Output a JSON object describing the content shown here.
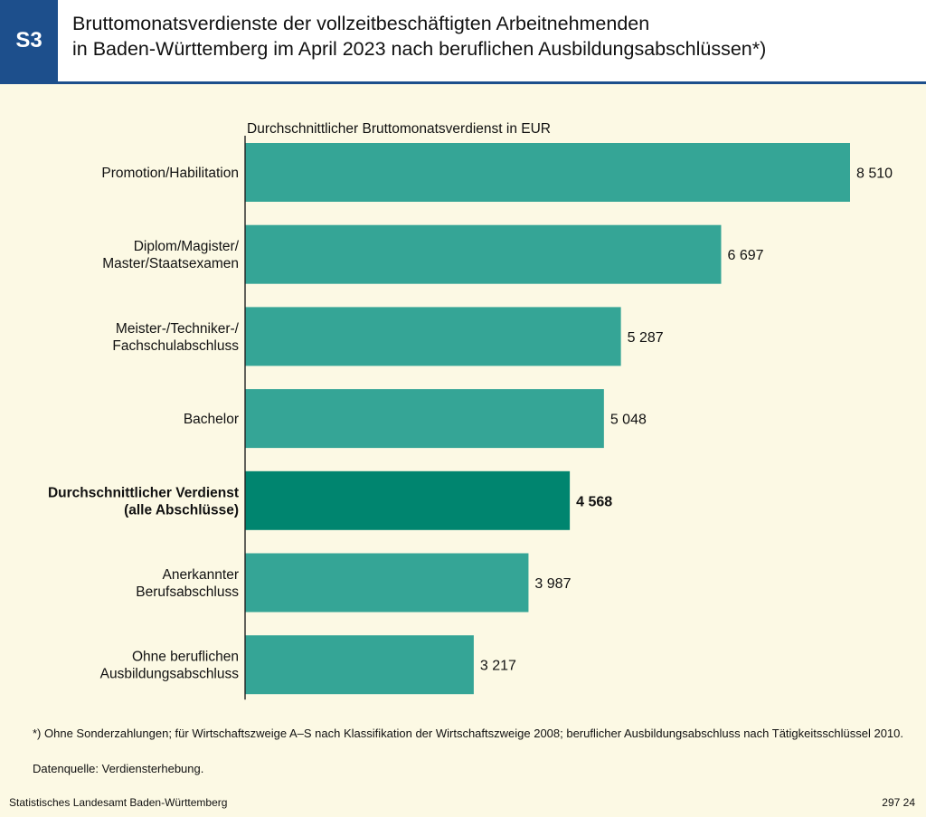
{
  "header": {
    "badge": "S3",
    "title_line1": "Bruttomonatsverdienste der vollzeitbeschäftigten Arbeitnehmenden",
    "title_line2": "in Baden-Württemberg im April 2023 nach beruflichen Ausbildungsabschlüssen*)"
  },
  "chart_data": {
    "type": "bar",
    "orientation": "horizontal",
    "axis_title": "Durchschnittlicher Bruttomonatsverdienst in EUR",
    "categories": [
      [
        "Promotion/Habilitation"
      ],
      [
        "Diplom/Magister/",
        "Master/Staatsexamen"
      ],
      [
        "Meister-/Techniker-/",
        "Fachschulabschluss"
      ],
      [
        "Bachelor"
      ],
      [
        "Durchschnittlicher Verdienst",
        "(alle Abschlüsse)"
      ],
      [
        "Anerkannter",
        "Berufsabschluss"
      ],
      [
        "Ohne beruflichen",
        "Ausbildungsabschluss"
      ]
    ],
    "values": [
      8510,
      6697,
      5287,
      5048,
      4568,
      3987,
      3217
    ],
    "value_labels": [
      "8 510",
      "6 697",
      "5 287",
      "5 048",
      "4 568",
      "3 987",
      "3 217"
    ],
    "highlight_index": 4,
    "xlim": [
      0,
      8510
    ],
    "grid": false,
    "legend": "none",
    "colors": {
      "bar": "#35a596",
      "highlight": "#00856f",
      "axis": "#222222"
    }
  },
  "footnote": "*) Ohne Sonderzahlungen; für Wirtschaftszweige A–S nach Klassifikation der Wirtschaftszweige 2008; beruflicher Ausbildungsabschluss nach Tätigkeitsschlüssel 2010.",
  "source": "Datenquelle: Verdiensterhebung.",
  "footer": {
    "publisher": "Statistisches Landesamt Baden-Württemberg",
    "code": "297 24"
  }
}
